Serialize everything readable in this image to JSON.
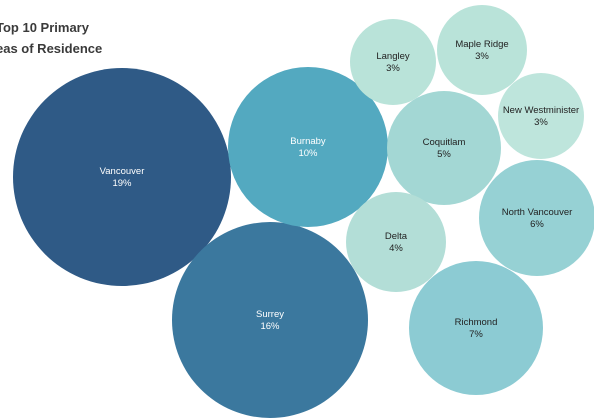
{
  "chart_data": {
    "type": "bubble",
    "title_lines": [
      "Top 10 Primary",
      "eas of Residence"
    ],
    "series": [
      {
        "name": "Vancouver",
        "label": "19%",
        "value": 19,
        "color": "#2f5a86"
      },
      {
        "name": "Surrey",
        "label": "16%",
        "value": 16,
        "color": "#3b789e"
      },
      {
        "name": "Burnaby",
        "label": "10%",
        "value": 10,
        "color": "#53a9c0"
      },
      {
        "name": "Richmond",
        "label": "7%",
        "value": 7,
        "color": "#8ccbd3"
      },
      {
        "name": "North Vancouver",
        "label": "6%",
        "value": 6,
        "color": "#96d1d4"
      },
      {
        "name": "Coquitlam",
        "label": "5%",
        "value": 5,
        "color": "#a3d7d4"
      },
      {
        "name": "Delta",
        "label": "4%",
        "value": 4,
        "color": "#b3ded7"
      },
      {
        "name": "Langley",
        "label": "3%",
        "value": 3,
        "color": "#b9e3d9"
      },
      {
        "name": "Maple Ridge",
        "label": "3%",
        "value": 3,
        "color": "#b9e3d9"
      },
      {
        "name": "New Westminister",
        "label": "3%",
        "value": 3,
        "color": "#bee5dc"
      }
    ]
  }
}
